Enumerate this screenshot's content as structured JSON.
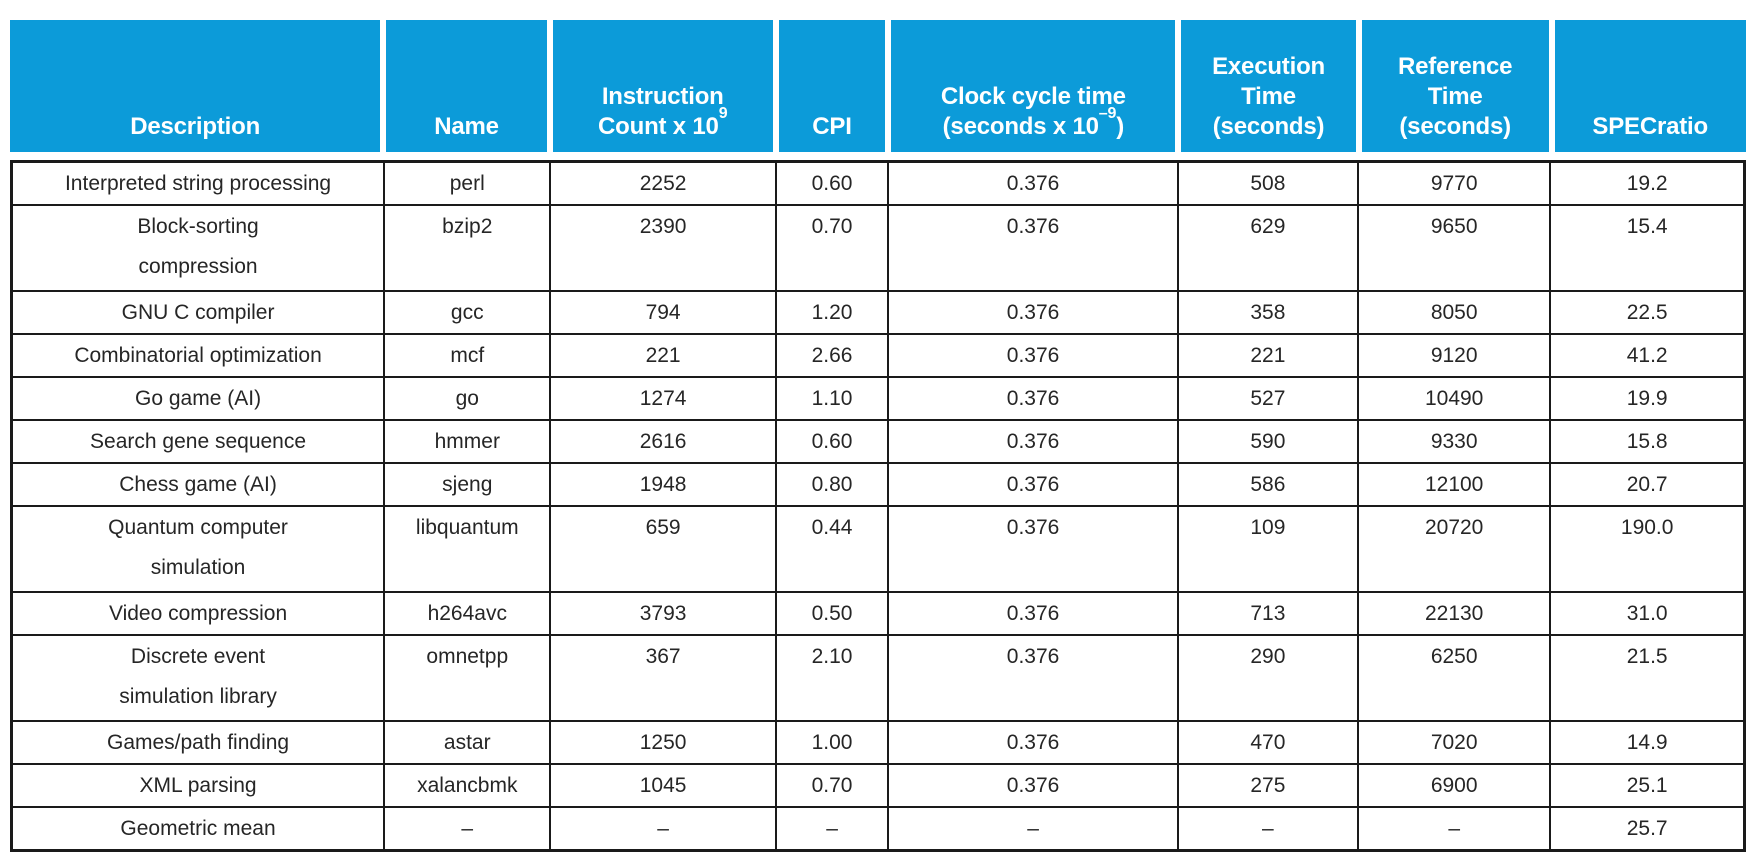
{
  "figure": {
    "type": "table",
    "colors": {
      "header_bg": "#0c9bd9",
      "header_text": "#ffffff",
      "body_text": "#262626",
      "border": "#1a1a1a",
      "background": "#ffffff"
    },
    "columns": [
      {
        "label": "Description"
      },
      {
        "label": "Name"
      },
      {
        "line1": "Instruction",
        "line2": "Count x 10",
        "sup": "9",
        "after": ""
      },
      {
        "label": "CPI"
      },
      {
        "line1": "Clock cycle time",
        "line2": "(seconds x 10",
        "sup": "–9",
        "after": ")"
      },
      {
        "line1": "Execution",
        "line2": "Time",
        "line3": "(seconds)"
      },
      {
        "line1": "Reference",
        "line2": "Time",
        "line3": "(seconds)"
      },
      {
        "label": "SPECratio"
      }
    ],
    "rows": [
      {
        "description": "Interpreted string processing",
        "name": "perl",
        "instruction_count": "2252",
        "cpi": "0.60",
        "clock_cycle_time": "0.376",
        "execution_time": "508",
        "reference_time": "9770",
        "specratio": "19.2"
      },
      {
        "description": "Block-sorting\ncompression",
        "name": "bzip2",
        "instruction_count": "2390",
        "cpi": "0.70",
        "clock_cycle_time": "0.376",
        "execution_time": "629",
        "reference_time": "9650",
        "specratio": "15.4"
      },
      {
        "description": "GNU C compiler",
        "name": "gcc",
        "instruction_count": "794",
        "cpi": "1.20",
        "clock_cycle_time": "0.376",
        "execution_time": "358",
        "reference_time": "8050",
        "specratio": "22.5"
      },
      {
        "description": "Combinatorial optimization",
        "name": "mcf",
        "instruction_count": "221",
        "cpi": "2.66",
        "clock_cycle_time": "0.376",
        "execution_time": "221",
        "reference_time": "9120",
        "specratio": "41.2"
      },
      {
        "description": "Go game (AI)",
        "name": "go",
        "instruction_count": "1274",
        "cpi": "1.10",
        "clock_cycle_time": "0.376",
        "execution_time": "527",
        "reference_time": "10490",
        "specratio": "19.9"
      },
      {
        "description": "Search gene sequence",
        "name": "hmmer",
        "instruction_count": "2616",
        "cpi": "0.60",
        "clock_cycle_time": "0.376",
        "execution_time": "590",
        "reference_time": "9330",
        "specratio": "15.8"
      },
      {
        "description": "Chess game (AI)",
        "name": "sjeng",
        "instruction_count": "1948",
        "cpi": "0.80",
        "clock_cycle_time": "0.376",
        "execution_time": "586",
        "reference_time": "12100",
        "specratio": "20.7"
      },
      {
        "description": "Quantum computer\nsimulation",
        "name": "libquantum",
        "instruction_count": "659",
        "cpi": "0.44",
        "clock_cycle_time": "0.376",
        "execution_time": "109",
        "reference_time": "20720",
        "specratio": "190.0"
      },
      {
        "description": "Video compression",
        "name": "h264avc",
        "instruction_count": "3793",
        "cpi": "0.50",
        "clock_cycle_time": "0.376",
        "execution_time": "713",
        "reference_time": "22130",
        "specratio": "31.0"
      },
      {
        "description": "Discrete event\nsimulation library",
        "name": "omnetpp",
        "instruction_count": "367",
        "cpi": "2.10",
        "clock_cycle_time": "0.376",
        "execution_time": "290",
        "reference_time": "6250",
        "specratio": "21.5"
      },
      {
        "description": "Games/path finding",
        "name": "astar",
        "instruction_count": "1250",
        "cpi": "1.00",
        "clock_cycle_time": "0.376",
        "execution_time": "470",
        "reference_time": "7020",
        "specratio": "14.9"
      },
      {
        "description": "XML parsing",
        "name": "xalancbmk",
        "instruction_count": "1045",
        "cpi": "0.70",
        "clock_cycle_time": "0.376",
        "execution_time": "275",
        "reference_time": "6900",
        "specratio": "25.1"
      },
      {
        "description": "Geometric mean",
        "name": "–",
        "instruction_count": "–",
        "cpi": "–",
        "clock_cycle_time": "–",
        "execution_time": "–",
        "reference_time": "–",
        "specratio": "25.7"
      }
    ]
  }
}
